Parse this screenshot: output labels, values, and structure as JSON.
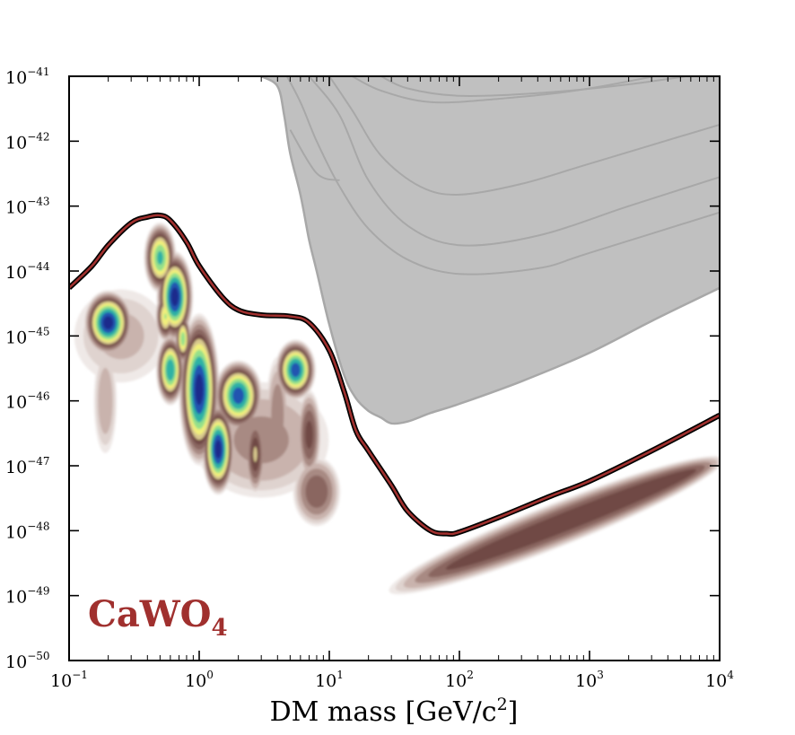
{
  "chart_data": {
    "type": "line",
    "title": "",
    "xlabel": "DM mass [GeV/c²]",
    "ylabel": "",
    "xscale": "log",
    "yscale": "log",
    "xlim": [
      0.1,
      10000
    ],
    "ylim": [
      1e-50,
      1e-41
    ],
    "x_ticks": [
      {
        "base": "10",
        "exp": "−1",
        "value": 0.1
      },
      {
        "base": "10",
        "exp": "0",
        "value": 1
      },
      {
        "base": "10",
        "exp": "1",
        "value": 10
      },
      {
        "base": "10",
        "exp": "2",
        "value": 100
      },
      {
        "base": "10",
        "exp": "3",
        "value": 1000
      },
      {
        "base": "10",
        "exp": "4",
        "value": 10000
      }
    ],
    "y_ticks": [
      {
        "base": "10",
        "exp": "−41",
        "value": 1e-41
      },
      {
        "base": "10",
        "exp": "−42",
        "value": 1e-42
      },
      {
        "base": "10",
        "exp": "−43",
        "value": 1e-43
      },
      {
        "base": "10",
        "exp": "−44",
        "value": 1e-44
      },
      {
        "base": "10",
        "exp": "−45",
        "value": 1e-45
      },
      {
        "base": "10",
        "exp": "−46",
        "value": 1e-46
      },
      {
        "base": "10",
        "exp": "−47",
        "value": 1e-47
      },
      {
        "base": "10",
        "exp": "−48",
        "value": 1e-48
      },
      {
        "base": "10",
        "exp": "−49",
        "value": 1e-49
      },
      {
        "base": "10",
        "exp": "−50",
        "value": 1e-50
      }
    ],
    "annotation": {
      "main": "CaWO",
      "sub": "4",
      "color": "#a0302e"
    },
    "limit_curve": {
      "color": "#a0302e",
      "points": [
        [
          0.1,
          5.5e-45
        ],
        [
          0.15,
          1.2e-44
        ],
        [
          0.2,
          2.5e-44
        ],
        [
          0.3,
          5.5e-44
        ],
        [
          0.4,
          6.8e-44
        ],
        [
          0.5,
          7.2e-44
        ],
        [
          0.6,
          6e-44
        ],
        [
          0.8,
          2.8e-44
        ],
        [
          1,
          1.2e-44
        ],
        [
          1.5,
          4e-45
        ],
        [
          2,
          2.5e-45
        ],
        [
          3,
          2.1e-45
        ],
        [
          5,
          2e-45
        ],
        [
          7,
          1.6e-45
        ],
        [
          10,
          6e-46
        ],
        [
          13,
          1.4e-46
        ],
        [
          16,
          3.5e-47
        ],
        [
          20,
          1.7e-47
        ],
        [
          30,
          5e-48
        ],
        [
          40,
          2e-48
        ],
        [
          60,
          1e-48
        ],
        [
          80,
          9e-49
        ],
        [
          100,
          9.5e-49
        ],
        [
          200,
          1.6e-48
        ],
        [
          500,
          3.4e-48
        ],
        [
          1000,
          5.8e-48
        ],
        [
          3000,
          1.7e-47
        ],
        [
          10000,
          6e-47
        ]
      ]
    },
    "excluded_region": {
      "color": "#c0c0c0",
      "edge_color": "#a8a8a8",
      "boundary": [
        [
          3,
          1e-41
        ],
        [
          4,
          7e-42
        ],
        [
          4.5,
          2.5e-42
        ],
        [
          5,
          6.5e-43
        ],
        [
          6,
          1.5e-43
        ],
        [
          7,
          3e-44
        ],
        [
          8,
          1e-44
        ],
        [
          10,
          1.5e-45
        ],
        [
          13,
          2.5e-46
        ],
        [
          16,
          1.1e-46
        ],
        [
          20,
          7e-47
        ],
        [
          25,
          5.5e-47
        ],
        [
          30,
          4.5e-47
        ],
        [
          40,
          4.8e-47
        ],
        [
          60,
          6.5e-47
        ],
        [
          100,
          9e-47
        ],
        [
          300,
          2e-46
        ],
        [
          1000,
          5.5e-46
        ],
        [
          3000,
          1.7e-45
        ],
        [
          10000,
          5.5e-45
        ]
      ]
    },
    "other_limits": [
      [
        [
          5,
          1.5e-42
        ],
        [
          8,
          3.2e-43
        ],
        [
          12,
          2.5e-43
        ]
      ],
      [
        [
          4.5,
          1.2e-41
        ],
        [
          6,
          4e-42
        ],
        [
          8,
          1e-42
        ],
        [
          12,
          2e-43
        ],
        [
          20,
          4.5e-44
        ],
        [
          40,
          1.5e-44
        ],
        [
          100,
          9e-45
        ],
        [
          400,
          1.1e-44
        ],
        [
          1000,
          1.9e-44
        ],
        [
          10000,
          8e-44
        ]
      ],
      [
        [
          7,
          1e-41
        ],
        [
          12,
          2.5e-42
        ],
        [
          20,
          2.5e-43
        ],
        [
          40,
          5e-44
        ],
        [
          100,
          2.5e-44
        ],
        [
          400,
          3.5e-44
        ],
        [
          2000,
          1e-43
        ],
        [
          10000,
          2.8e-43
        ]
      ],
      [
        [
          10,
          1e-41
        ],
        [
          15,
          3e-42
        ],
        [
          25,
          6e-43
        ],
        [
          50,
          2e-43
        ],
        [
          100,
          1.5e-43
        ],
        [
          300,
          2.2e-43
        ],
        [
          1000,
          4.5e-43
        ],
        [
          10000,
          1.8e-42
        ]
      ],
      [
        [
          15,
          1e-41
        ],
        [
          25,
          6e-42
        ],
        [
          60,
          4e-42
        ],
        [
          200,
          4.5e-42
        ],
        [
          1000,
          6.5e-42
        ],
        [
          10000,
          1.6e-41
        ]
      ],
      [
        [
          25,
          1e-41
        ],
        [
          40,
          6.5e-42
        ],
        [
          100,
          5e-42
        ],
        [
          400,
          5.5e-42
        ],
        [
          2000,
          7.5e-42
        ],
        [
          10000,
          1.2e-41
        ]
      ]
    ],
    "density_blobs": [
      {
        "m": 0.2,
        "s": 1.6e-45,
        "rx": 0.12,
        "ry": 0.32,
        "peak": 1.0
      },
      {
        "m": 0.19,
        "s": 1e-46,
        "rx": 0.06,
        "ry": 0.55,
        "peak": 0.3
      },
      {
        "m": 0.5,
        "s": 1.6e-44,
        "rx": 0.08,
        "ry": 0.35,
        "peak": 0.85
      },
      {
        "m": 0.65,
        "s": 4e-45,
        "rx": 0.09,
        "ry": 0.45,
        "peak": 1.0
      },
      {
        "m": 0.55,
        "s": 2e-45,
        "rx": 0.05,
        "ry": 0.25,
        "peak": 0.75
      },
      {
        "m": 0.75,
        "s": 9e-46,
        "rx": 0.04,
        "ry": 0.25,
        "peak": 0.8
      },
      {
        "m": 0.6,
        "s": 3e-46,
        "rx": 0.07,
        "ry": 0.35,
        "peak": 0.9
      },
      {
        "m": 1.0,
        "s": 1.5e-46,
        "rx": 0.1,
        "ry": 0.75,
        "peak": 1.0
      },
      {
        "m": 1.4,
        "s": 1.8e-47,
        "rx": 0.08,
        "ry": 0.45,
        "peak": 1.0
      },
      {
        "m": 2.0,
        "s": 1.2e-46,
        "rx": 0.12,
        "ry": 0.35,
        "peak": 0.95
      },
      {
        "m": 2.7,
        "s": 1.5e-47,
        "rx": 0.05,
        "ry": 0.4,
        "peak": 0.6
      },
      {
        "m": 5.5,
        "s": 3e-46,
        "rx": 0.1,
        "ry": 0.3,
        "peak": 0.95
      },
      {
        "m": 4.0,
        "s": 6e-47,
        "rx": 0.06,
        "ry": 0.6,
        "peak": 0.4
      },
      {
        "m": 8.0,
        "s": 4e-48,
        "rx": 0.12,
        "ry": 0.35,
        "peak": 0.5
      },
      {
        "m": 7.0,
        "s": 3e-47,
        "rx": 0.06,
        "ry": 0.45,
        "peak": 0.55
      },
      {
        "m": 3.0,
        "s": 2.5e-47,
        "rx": 0.35,
        "ry": 0.6,
        "peak": 0.35
      },
      {
        "m": 0.25,
        "s": 1e-45,
        "rx": 0.25,
        "ry": 0.5,
        "peak": 0.25
      }
    ],
    "density_band": {
      "from": [
        30,
        1.2e-49
      ],
      "to": [
        10000,
        1.2e-47
      ],
      "width": 0.25,
      "peak": 0.6
    },
    "legend": "none",
    "grid": false
  }
}
